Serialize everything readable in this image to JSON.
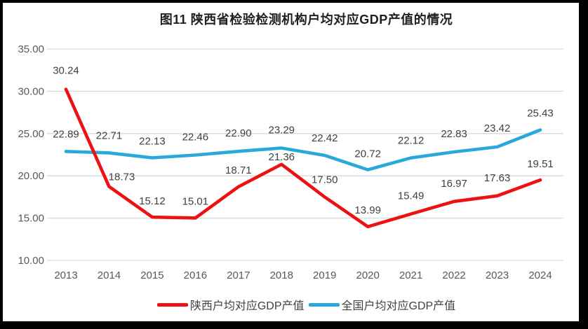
{
  "chart_data": {
    "type": "line",
    "title": "图11  陕西省检验检测机构户均对应GDP产值的情况",
    "categories": [
      "2013",
      "2014",
      "2015",
      "2016",
      "2017",
      "2018",
      "2019",
      "2020",
      "2021",
      "2022",
      "2023",
      "2024"
    ],
    "series": [
      {
        "name": "陕西户均对应GDP产值",
        "color": "#ee1111",
        "values": [
          30.24,
          18.73,
          15.12,
          15.01,
          18.71,
          21.36,
          17.5,
          13.99,
          15.49,
          16.97,
          17.63,
          19.51
        ],
        "label_dx": [
          0,
          18,
          0,
          0,
          0,
          0,
          0,
          0,
          0,
          0,
          0,
          0
        ],
        "label_dy": [
          -27,
          -14,
          -23,
          -24,
          -24,
          -11,
          -25,
          -24,
          -26,
          -26,
          -26,
          -23
        ]
      },
      {
        "name": "全国户均对应GDP产值",
        "color": "#29a8dc",
        "values": [
          22.89,
          22.71,
          22.13,
          22.46,
          22.9,
          23.29,
          22.42,
          20.72,
          22.12,
          22.83,
          23.42,
          25.43
        ],
        "label_dx": [
          0,
          0,
          0,
          0,
          0,
          0,
          0,
          0,
          0,
          0,
          0,
          0
        ],
        "label_dy": [
          -25,
          -25,
          -24,
          -26,
          -26,
          -26,
          -25,
          -23,
          -25,
          -26,
          -27,
          -24
        ]
      }
    ],
    "ylim": [
      10,
      35
    ],
    "ytick_step": 5,
    "ytick_decimals": 2,
    "dlabel_decimals": 2,
    "grid": true,
    "legend_position": "bottom"
  }
}
